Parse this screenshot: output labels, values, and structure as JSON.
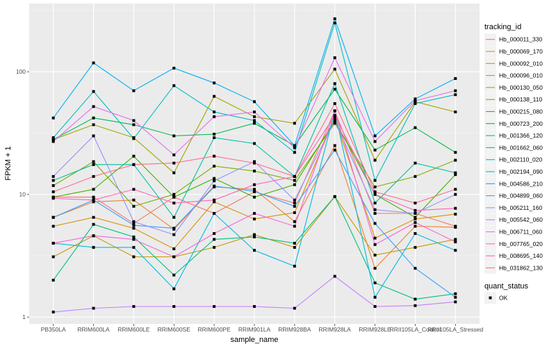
{
  "chart_data": {
    "type": "line",
    "title": "",
    "xlabel": "sample_name",
    "ylabel": "FPKM + 1",
    "yscale": "log10",
    "ylim": [
      0.88,
      360
    ],
    "yticks": [
      1,
      10,
      100
    ],
    "ytick_labels": [
      "1",
      "10",
      "100"
    ],
    "grid": true,
    "categories": [
      "PB350LA",
      "RRIM600LA",
      "RRIM600LE",
      "RRIM600SE",
      "RRIM600PE",
      "RRIM901LA",
      "RRIM928BA",
      "RRIM928LA",
      "RRIM928LE",
      "RRII105LA_Control",
      "RRII105LA_Stressed"
    ],
    "legend": {
      "title": "tracking_id",
      "placement": "right"
    },
    "shape_legend": {
      "title": "quant_status",
      "items": [
        "OK"
      ]
    },
    "series": [
      {
        "name": "Hb_000011_330",
        "color": "#F8766D",
        "values": [
          9.5,
          9.5,
          5.8,
          9.5,
          7.0,
          10.5,
          8.5,
          48,
          7.0,
          7.0,
          5.5
        ]
      },
      {
        "name": "Hb_000069_170",
        "color": "#EA8331",
        "values": [
          6.5,
          8.7,
          9.0,
          5.2,
          11.5,
          11.0,
          6.0,
          25,
          2.5,
          5.5,
          5.4
        ]
      },
      {
        "name": "Hb_000092_010",
        "color": "#D89000",
        "values": [
          5.5,
          6.5,
          5.3,
          3.6,
          8.7,
          6.3,
          7.1,
          42,
          4.4,
          6.3,
          6.9
        ]
      },
      {
        "name": "Hb_000096_010",
        "color": "#C09B00",
        "values": [
          3.1,
          4.6,
          3.1,
          3.1,
          3.7,
          4.7,
          3.7,
          9.6,
          3.2,
          3.7,
          4.3
        ]
      },
      {
        "name": "Hb_000130_050",
        "color": "#A3A500",
        "values": [
          28,
          37,
          29,
          15,
          63,
          43,
          38,
          105,
          19,
          57,
          47
        ]
      },
      {
        "name": "Hb_000138_110",
        "color": "#7CAE00",
        "values": [
          11.8,
          18.5,
          8.0,
          10.0,
          17.0,
          15.5,
          13.0,
          38,
          11.5,
          14.0,
          19.0
        ]
      },
      {
        "name": "Hb_000215_080",
        "color": "#39B600",
        "values": [
          9.5,
          11.0,
          20.5,
          9.5,
          13.5,
          9.5,
          12.0,
          40,
          10.0,
          6.5,
          14.5
        ]
      },
      {
        "name": "Hb_000723_200",
        "color": "#00BB4E",
        "values": [
          28,
          42,
          37,
          30,
          31,
          38,
          25,
          72,
          23,
          35,
          22
        ]
      },
      {
        "name": "Hb_001366_120",
        "color": "#00BF7D",
        "values": [
          2.0,
          5.7,
          4.5,
          2.2,
          4.3,
          4.5,
          4.0,
          9.6,
          1.9,
          1.4,
          1.55
        ]
      },
      {
        "name": "Hb_001662_060",
        "color": "#00C1A3",
        "values": [
          13,
          17.5,
          17.5,
          6.5,
          29,
          26,
          14,
          80,
          8.5,
          18,
          15
        ]
      },
      {
        "name": "Hb_002110_020",
        "color": "#00BFC4",
        "values": [
          29,
          69,
          28.5,
          77,
          47,
          40,
          22,
          250,
          13,
          55,
          65
        ]
      },
      {
        "name": "Hb_002194_090",
        "color": "#00BAE0",
        "values": [
          4.0,
          3.7,
          3.7,
          1.7,
          7.0,
          3.5,
          2.6,
          48,
          1.45,
          4.8,
          3.5
        ]
      },
      {
        "name": "Hb_004586_210",
        "color": "#00B0F6",
        "values": [
          42,
          118,
          70,
          107,
          81,
          57,
          25,
          270,
          30,
          60,
          88
        ]
      },
      {
        "name": "Hb_004899_060",
        "color": "#35A2FF",
        "values": [
          6.5,
          9.0,
          5.6,
          5.3,
          11.7,
          10.6,
          8.0,
          23,
          5.8,
          2.5,
          1.45
        ]
      },
      {
        "name": "Hb_005211_160",
        "color": "#9590FF",
        "values": [
          14,
          30,
          6.0,
          4.7,
          12.9,
          18.5,
          9.0,
          40,
          7.5,
          7.0,
          10.0
        ]
      },
      {
        "name": "Hb_005542_060",
        "color": "#C77CFF",
        "values": [
          1.1,
          1.18,
          1.22,
          1.22,
          1.22,
          1.22,
          1.18,
          2.15,
          1.22,
          1.24,
          1.33
        ]
      },
      {
        "name": "Hb_006711_060",
        "color": "#E76BF3",
        "values": [
          27,
          52,
          40,
          21,
          43,
          47,
          24,
          130,
          27,
          58,
          70
        ]
      },
      {
        "name": "Hb_007765_020",
        "color": "#FA62DB",
        "values": [
          4.0,
          4.6,
          4.3,
          3.1,
          4.8,
          7.0,
          5.5,
          48,
          3.9,
          5.9,
          4.1
        ]
      },
      {
        "name": "Hb_008695_140",
        "color": "#FF62BC",
        "values": [
          9.3,
          9.0,
          11.0,
          8.5,
          9.0,
          12.0,
          14.0,
          44,
          10.0,
          7.4,
          7.7
        ]
      },
      {
        "name": "Hb_031862_130",
        "color": "#FF6C91",
        "values": [
          10.5,
          14.0,
          17.5,
          18.0,
          20.5,
          18.0,
          14.0,
          55,
          10.5,
          8.5,
          11.0
        ]
      }
    ]
  }
}
